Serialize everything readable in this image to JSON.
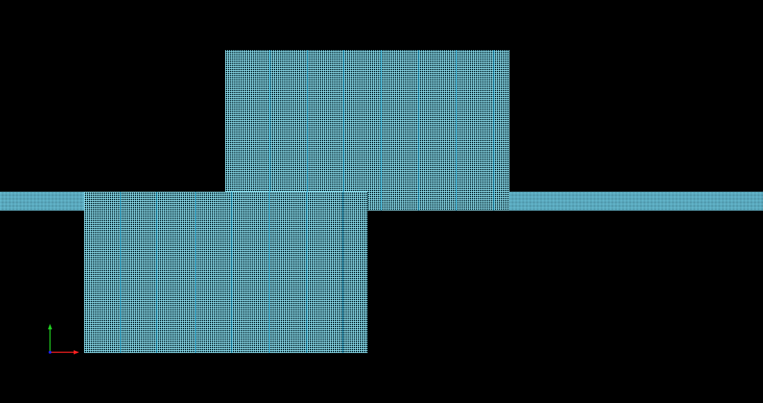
{
  "viewport": {
    "background_color": "#000000",
    "mesh_color": "#96ebfa",
    "mesh_block_line_color": "#008cbe"
  },
  "orientation_axes": {
    "x_axis_color": "#ff2020",
    "y_axis_color": "#20d020",
    "z_axis_color": "#2020ff",
    "icon": "axes-triad-icon"
  }
}
